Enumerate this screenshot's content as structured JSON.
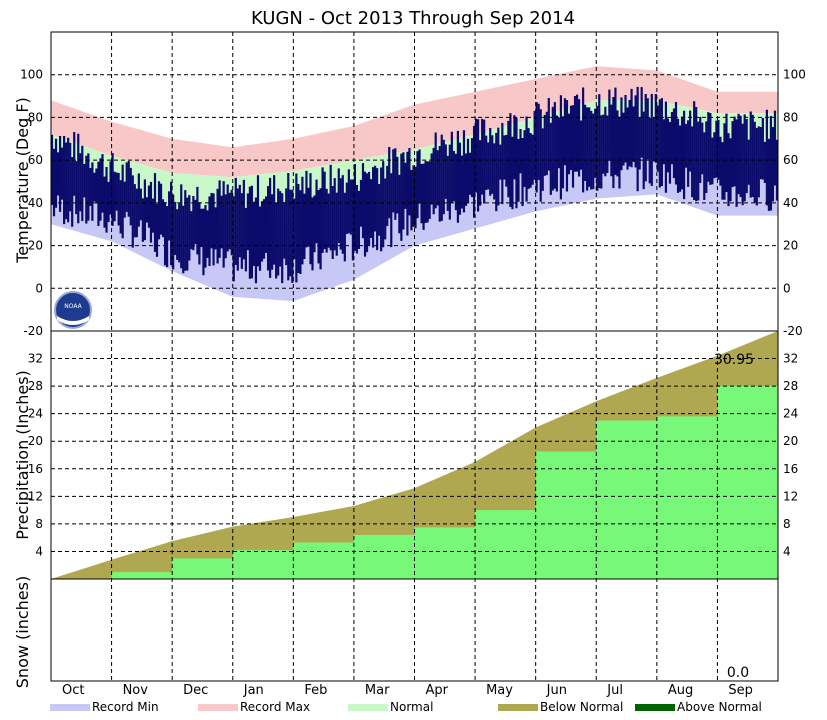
{
  "title": "KUGN - Oct 2013 Through Sep 2014",
  "months": [
    "Oct",
    "Nov",
    "Dec",
    "Jan",
    "Feb",
    "Mar",
    "Apr",
    "May",
    "Jun",
    "Jul",
    "Aug",
    "Sep"
  ],
  "logo_text": "NOAA",
  "colors": {
    "record_min": "#c8c8f6",
    "record_max": "#f8c8c8",
    "normal": "#c8f8c8",
    "observed": "#0b0b6b",
    "below_normal": "#b0a850",
    "above_normal": "#006400",
    "precip_observed": "#78f878"
  },
  "legend": [
    {
      "label": "Record Min",
      "color": "#c8c8f6"
    },
    {
      "label": "Record Max",
      "color": "#f8c8c8"
    },
    {
      "label": "Normal",
      "color": "#c8f8c8"
    },
    {
      "label": "Below Normal",
      "color": "#b0a850"
    },
    {
      "label": "Above Normal",
      "color": "#006400"
    }
  ],
  "chart_data": [
    {
      "type": "area",
      "panel": "temperature",
      "ylabel": "Temperature (Deg F)",
      "ylim": [
        -20,
        120
      ],
      "yticks": [
        -20,
        0,
        20,
        40,
        60,
        80,
        100
      ],
      "x": [
        "Oct",
        "Nov",
        "Dec",
        "Jan",
        "Feb",
        "Mar",
        "Apr",
        "May",
        "Jun",
        "Jul",
        "Aug",
        "Sep"
      ],
      "series": [
        {
          "name": "Record Max",
          "values": [
            88,
            78,
            70,
            66,
            70,
            76,
            86,
            92,
            98,
            104,
            102,
            92
          ]
        },
        {
          "name": "Normal",
          "values": [
            62,
            52,
            44,
            42,
            45,
            50,
            55,
            62,
            70,
            78,
            78,
            72
          ]
        },
        {
          "name": "Record Min",
          "values": [
            30,
            22,
            8,
            -4,
            -6,
            4,
            20,
            28,
            36,
            42,
            44,
            34
          ]
        }
      ],
      "observed_high": [
        72,
        56,
        44,
        44,
        48,
        52,
        64,
        72,
        80,
        88,
        86,
        76
      ],
      "observed_low": [
        38,
        32,
        16,
        10,
        10,
        20,
        32,
        40,
        48,
        52,
        54,
        44
      ],
      "grid": true
    },
    {
      "type": "area",
      "panel": "precipitation",
      "ylabel": "Precipitation (Inches)",
      "ylim": [
        0,
        36
      ],
      "yticks": [
        4,
        8,
        12,
        16,
        20,
        24,
        28,
        32
      ],
      "x": [
        "Oct",
        "Nov",
        "Dec",
        "Jan",
        "Feb",
        "Mar",
        "Apr",
        "May",
        "Jun",
        "Jul",
        "Aug",
        "Sep"
      ],
      "series": [
        {
          "name": "Normal",
          "values": [
            0,
            2.8,
            5.5,
            7.6,
            9.0,
            10.6,
            13.2,
            17.0,
            22.0,
            25.8,
            29.2,
            32.4
          ]
        },
        {
          "name": "Observed",
          "values": [
            0,
            1.0,
            3.0,
            4.2,
            5.3,
            6.4,
            7.5,
            10.0,
            18.5,
            23.0,
            23.6,
            28.0
          ]
        }
      ],
      "end_value": 36.0,
      "observed_final": "30.95",
      "grid": true
    },
    {
      "type": "area",
      "panel": "snow",
      "ylabel": "Snow (inches)",
      "x": [
        "Oct",
        "Nov",
        "Dec",
        "Jan",
        "Feb",
        "Mar",
        "Apr",
        "May",
        "Jun",
        "Jul",
        "Aug",
        "Sep"
      ],
      "values": [
        0,
        0,
        0,
        0,
        0,
        0,
        0,
        0,
        0,
        0,
        0,
        0
      ],
      "observed_final": "0.0",
      "grid": true
    }
  ]
}
